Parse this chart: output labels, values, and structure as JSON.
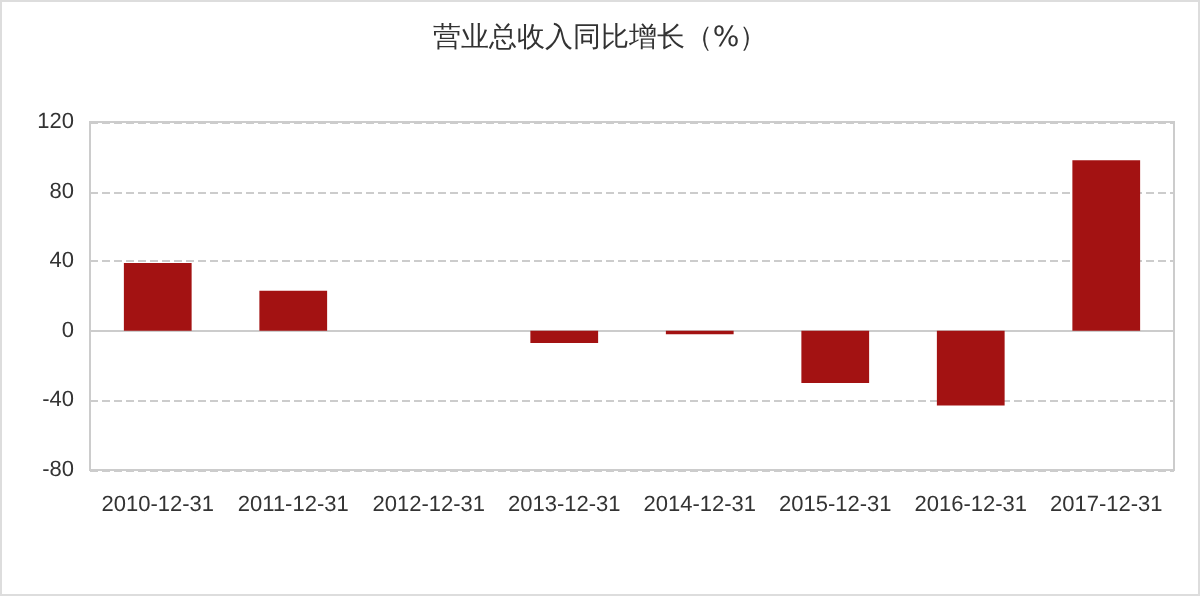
{
  "chart_data": {
    "type": "bar",
    "title": "营业总收入同比增长（%）",
    "categories": [
      "2010-12-31",
      "2011-12-31",
      "2012-12-31",
      "2013-12-31",
      "2014-12-31",
      "2015-12-31",
      "2016-12-31",
      "2017-12-31"
    ],
    "values": [
      39,
      23,
      null,
      -7,
      -2,
      -30,
      -43,
      98
    ],
    "color": "#a31212",
    "ylim": [
      -80,
      120
    ],
    "yticks": [
      -80,
      -40,
      0,
      40,
      80,
      120
    ],
    "grid": "y"
  }
}
